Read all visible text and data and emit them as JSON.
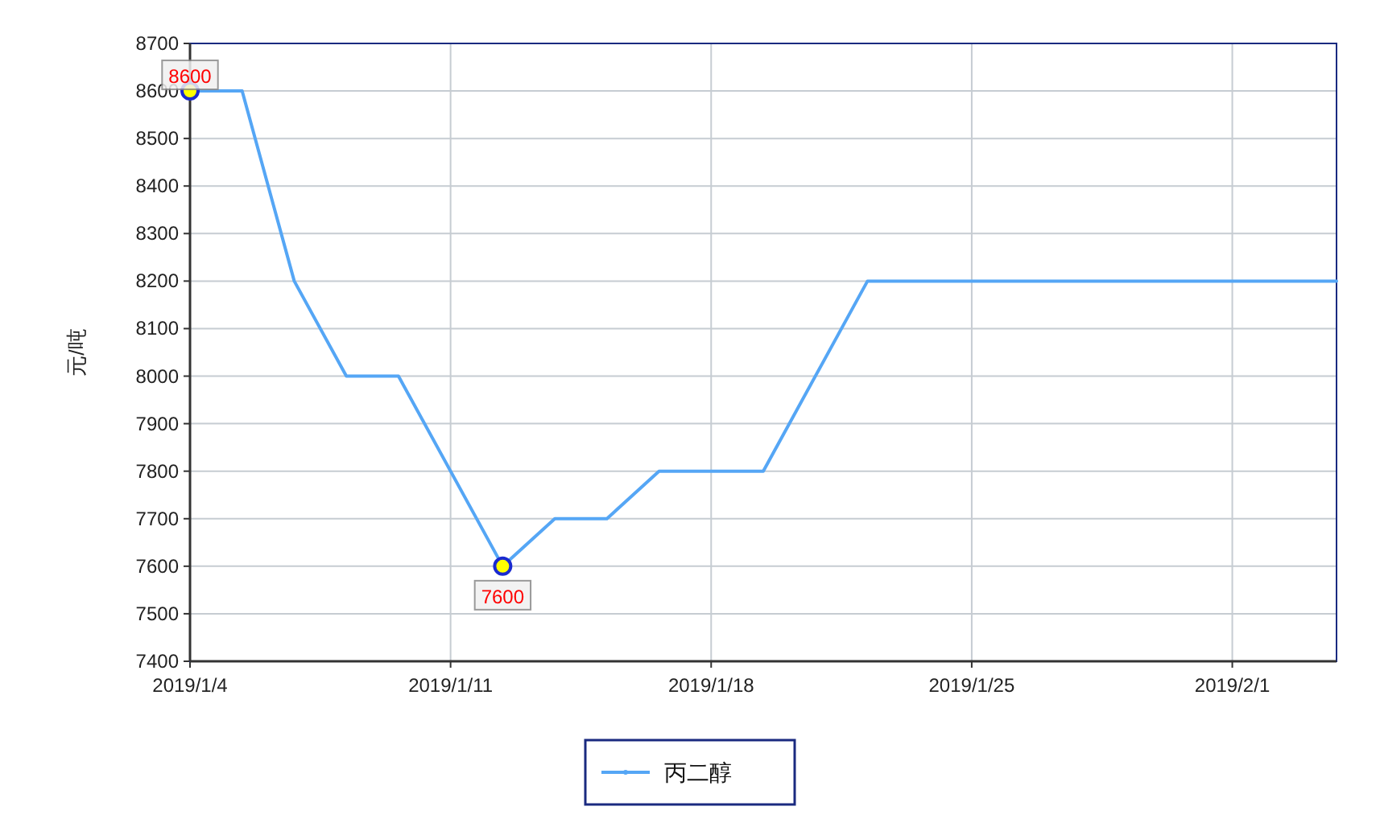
{
  "chart_data": {
    "type": "line",
    "ylabel": "元/吨",
    "x": [
      "2019-01-04T00:00",
      "2019-01-05T09:36",
      "2019-01-06T19:12",
      "2019-01-08T04:48",
      "2019-01-09T14:24",
      "2019-01-12T09:36",
      "2019-01-13T19:12",
      "2019-01-15T04:48",
      "2019-01-16T14:24",
      "2019-01-19T09:36",
      "2019-01-22T04:48",
      "2019-02-03T19:12"
    ],
    "series": [
      {
        "name": "丙二醇",
        "color": "#55a6f5",
        "values": [
          8600,
          8600,
          8200,
          8000,
          8000,
          7600,
          7700,
          7700,
          7800,
          7800,
          8200,
          8200
        ],
        "value_labels": [
          "8600",
          null,
          null,
          null,
          null,
          "7600",
          null,
          null,
          null,
          null,
          null,
          null
        ]
      }
    ],
    "xlim": [
      "2019-01-04T00:00",
      "2019-02-03T19:12"
    ],
    "xticks": [
      {
        "value": "2019-01-04",
        "label": "2019/1/4"
      },
      {
        "value": "2019-01-11",
        "label": "2019/1/11"
      },
      {
        "value": "2019-01-18",
        "label": "2019/1/18"
      },
      {
        "value": "2019-01-25",
        "label": "2019/1/25"
      },
      {
        "value": "2019-02-01",
        "label": "2019/2/1"
      }
    ],
    "ylim": [
      7400,
      8700
    ],
    "yticks": [
      7400,
      7500,
      7600,
      7700,
      7800,
      7900,
      8000,
      8100,
      8200,
      8300,
      8400,
      8500,
      8600,
      8700
    ],
    "grid": true,
    "legend": "bottom"
  }
}
